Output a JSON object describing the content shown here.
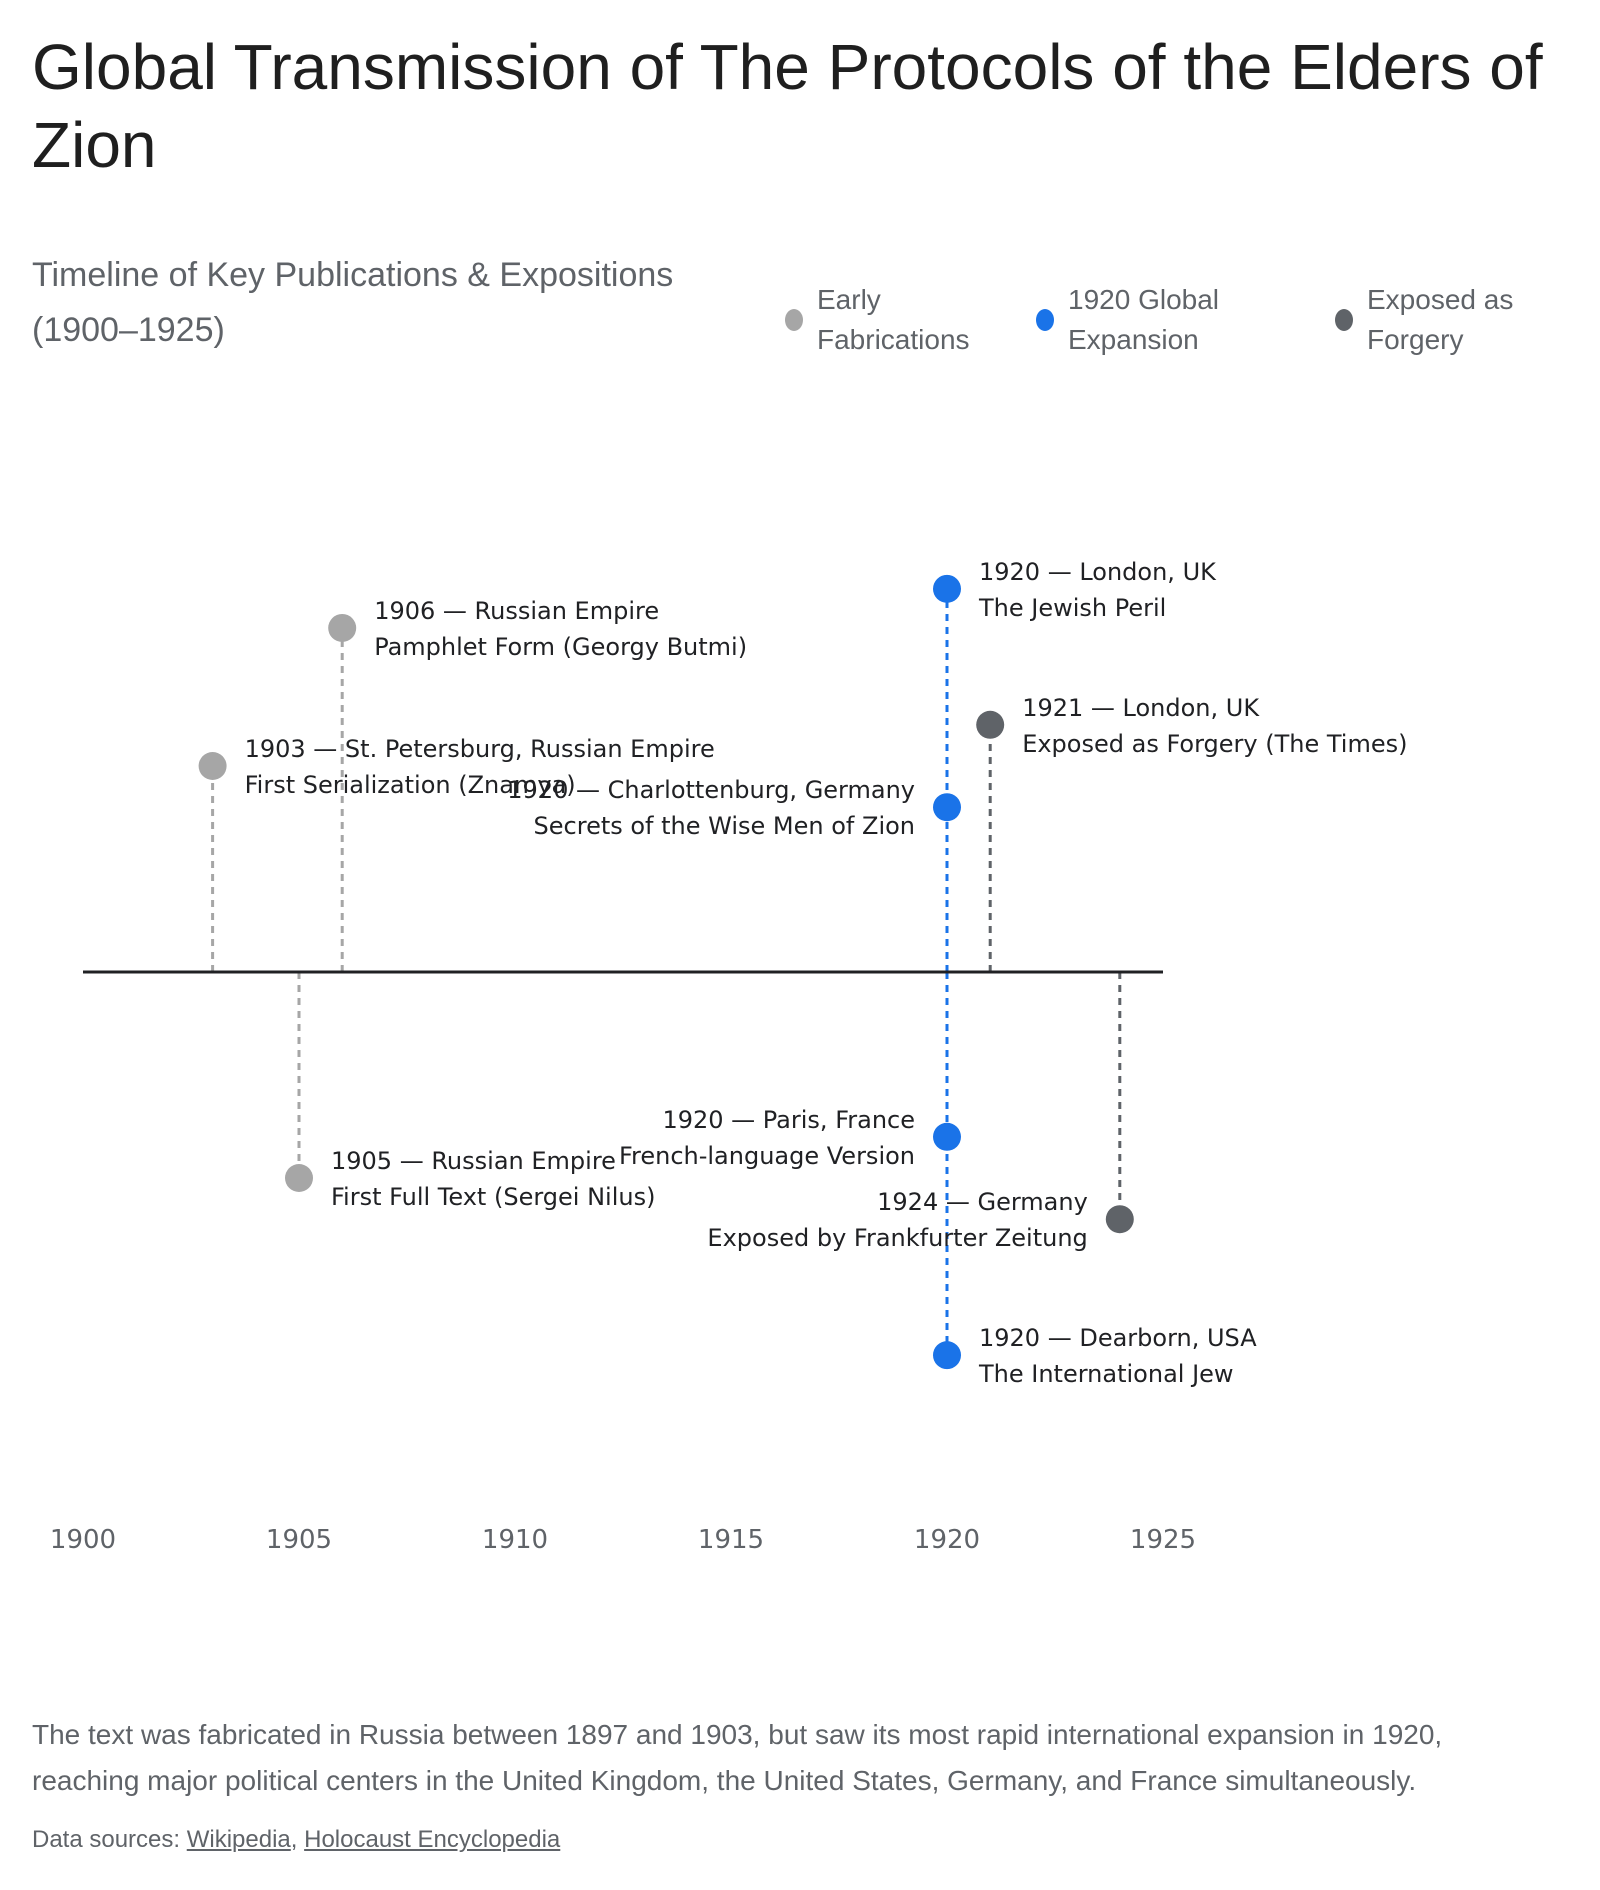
{
  "title": "Global Transmission of The Protocols of the Elders of Zion",
  "subtitle": "Timeline of Key Publications & Expositions (1900–1925)",
  "legend": [
    {
      "label": "Early Fabrications",
      "color": "#a6a6a6"
    },
    {
      "label": "1920 Global Expansion",
      "color": "#1a73e8"
    },
    {
      "label": "Exposed as Forgery",
      "color": "#5f6368"
    }
  ],
  "chart_data": {
    "type": "timeline",
    "title": "Global Transmission of The Protocols of the Elders of Zion",
    "subtitle": "Timeline of Key Publications & Expositions (1900–1925)",
    "xlim": [
      1900,
      1925
    ],
    "ticks": [
      1900,
      1905,
      1910,
      1915,
      1920,
      1925
    ],
    "grid": false,
    "legend_position": "top-right",
    "series": [
      {
        "name": "Early Fabrications",
        "color": "#a6a6a6"
      },
      {
        "name": "1920 Global Expansion",
        "color": "#1a73e8"
      },
      {
        "name": "Exposed as Forgery",
        "color": "#5f6368"
      }
    ],
    "events": [
      {
        "year": 1903,
        "series": 0,
        "level": 1.0,
        "label_side": "right",
        "line1": "1903 — St. Petersburg, Russian Empire",
        "line2": "First Serialization (Znamya)"
      },
      {
        "year": 1905,
        "series": 0,
        "level": -1.0,
        "label_side": "right",
        "line1": "1905 — Russian Empire",
        "line2": "First Full Text (Sergei Nilus)"
      },
      {
        "year": 1906,
        "series": 0,
        "level": 1.67,
        "label_side": "right",
        "line1": "1906 — Russian Empire",
        "line2": "Pamphlet Form (Georgy Butmi)"
      },
      {
        "year": 1920,
        "series": 1,
        "level": 1.86,
        "label_side": "right",
        "line1": "1920 — London, UK",
        "line2": "The Jewish Peril"
      },
      {
        "year": 1920,
        "series": 1,
        "level": 0.8,
        "label_side": "left",
        "line1": "1920 — Charlottenburg, Germany",
        "line2": "Secrets of the Wise Men of Zion"
      },
      {
        "year": 1920,
        "series": 1,
        "level": -0.8,
        "label_side": "left",
        "line1": "1920 — Paris, France",
        "line2": "French-language Version"
      },
      {
        "year": 1920,
        "series": 1,
        "level": -1.86,
        "label_side": "right",
        "line1": "1920 — Dearborn, USA",
        "line2": "The International Jew"
      },
      {
        "year": 1921,
        "series": 2,
        "level": 1.2,
        "label_side": "right",
        "line1": "1921 — London, UK",
        "line2": "Exposed as Forgery (The Times)"
      },
      {
        "year": 1924,
        "series": 2,
        "level": -1.2,
        "label_side": "left",
        "line1": "1924 — Germany",
        "line2": "Exposed by Frankfurter Zeitung"
      }
    ]
  },
  "note": "The text was fabricated in Russia between 1897 and 1903, but saw its most rapid international expansion in 1920, reaching major political centers in the United Kingdom, the United States, Germany, and France simultaneously.",
  "sources": {
    "prefix": "Data sources: ",
    "links": [
      "Wikipedia",
      "Holocaust Encyclopedia"
    ],
    "separator": ", "
  }
}
